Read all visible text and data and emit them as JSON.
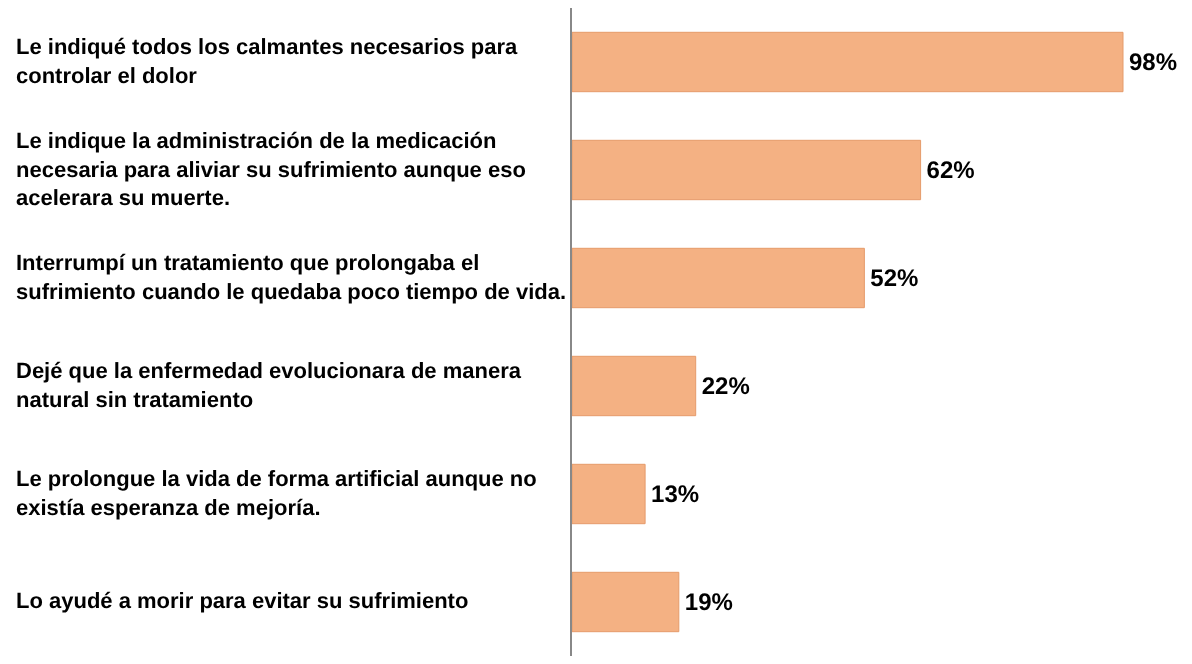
{
  "chart_data": {
    "type": "bar",
    "orientation": "horizontal",
    "categories": [
      "Le indiqué todos los calmantes necesarios para controlar el dolor",
      "Le indique la administración de la medicación necesaria para aliviar su sufrimiento aunque eso acelerara su muerte.",
      "Interrumpí un tratamiento que prolongaba el sufrimiento cuando le quedaba poco tiempo de vida.",
      "Dejé que la enfermedad evolucionara de manera natural sin tratamiento",
      "Le prolongue la vida de forma artificial aunque no existía esperanza de mejoría.",
      "Lo ayudé a morir para evitar su sufrimiento"
    ],
    "values": [
      98,
      62,
      52,
      22,
      13,
      19
    ],
    "value_labels": [
      "98%",
      "62%",
      "52%",
      "22%",
      "13%",
      "19%"
    ],
    "color": "#f4b183"
  }
}
